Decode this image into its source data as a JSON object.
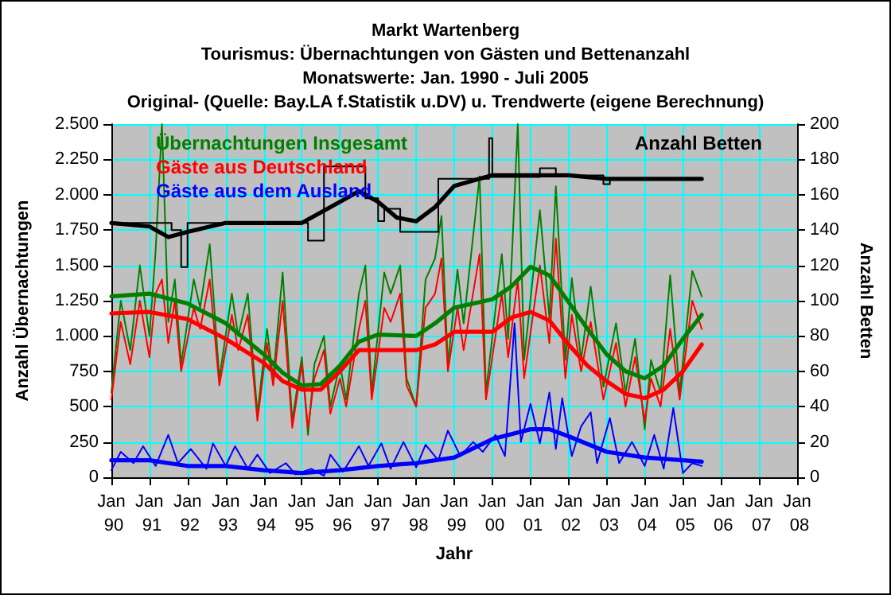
{
  "chart_data": {
    "type": "line",
    "title": "Markt Wartenberg",
    "subtitle": "Tourismus: Übernachtungen von Gästen und Bettenanzahl\nMonatswerte: Jan. 1990 - Juli 2005\nOriginal- (Quelle: Bay.LA f.Statistik u.DV) u. Trendwerte (eigene Berechnung)",
    "xlabel": "Jahr",
    "ylabel": "Anzahl Übernachtungen",
    "y2label": "Anzahl Betten",
    "xlim": [
      "1990-01",
      "2008-01"
    ],
    "xticks": [
      {
        "value": "1990-01",
        "label": "Jan 90"
      },
      {
        "value": "1991-01",
        "label": "Jan 91"
      },
      {
        "value": "1992-01",
        "label": "Jan 92"
      },
      {
        "value": "1993-01",
        "label": "Jan 93"
      },
      {
        "value": "1994-01",
        "label": "Jan 94"
      },
      {
        "value": "1995-01",
        "label": "Jan 95"
      },
      {
        "value": "1996-01",
        "label": "Jan 96"
      },
      {
        "value": "1997-01",
        "label": "Jan 97"
      },
      {
        "value": "1998-01",
        "label": "Jan 98"
      },
      {
        "value": "1999-01",
        "label": "Jan 99"
      },
      {
        "value": "2000-01",
        "label": "Jan 00"
      },
      {
        "value": "2001-01",
        "label": "Jan 01"
      },
      {
        "value": "2002-01",
        "label": "Jan 02"
      },
      {
        "value": "2003-01",
        "label": "Jan 03"
      },
      {
        "value": "2004-01",
        "label": "Jan 04"
      },
      {
        "value": "2005-01",
        "label": "Jan 05"
      },
      {
        "value": "2006-01",
        "label": "Jan 06"
      },
      {
        "value": "2007-01",
        "label": "Jan 07"
      },
      {
        "value": "2008-01",
        "label": "Jan 08"
      }
    ],
    "ylim": [
      0,
      2500
    ],
    "yticks": [
      0,
      250,
      500,
      750,
      {
        "value": 1000,
        "label": "1.000"
      },
      {
        "value": 1250,
        "label": "1.250"
      },
      {
        "value": 1500,
        "label": "1.500"
      },
      {
        "value": 1750,
        "label": "1.750"
      },
      {
        "value": 2000,
        "label": "2.000"
      },
      {
        "value": 2250,
        "label": "2.250"
      },
      {
        "value": 2500,
        "label": "2.500"
      }
    ],
    "y2lim": [
      0,
      200
    ],
    "y2ticks": [
      0,
      20,
      40,
      60,
      80,
      100,
      120,
      140,
      160,
      180,
      200
    ],
    "grid": true,
    "legend": "top left",
    "marker": "none",
    "line_style": "solid",
    "series": [
      {
        "name": "Übernachtungen Insgesamt",
        "color": "#008000",
        "x": [
          "1990-01",
          "1990-04",
          "1990-07",
          "1990-10",
          "1991-01",
          "1991-03",
          "1991-05",
          "1991-07",
          "1991-09",
          "1991-11",
          "1992-03",
          "1992-05",
          "1992-08",
          "1992-11",
          "1993-03",
          "1993-05",
          "1993-08",
          "1993-11",
          "1994-02",
          "1994-04",
          "1994-07",
          "1994-10",
          "1995-01",
          "1995-03",
          "1995-05",
          "1995-08",
          "1995-10",
          "1996-01",
          "1996-03",
          "1996-07",
          "1996-09",
          "1996-11",
          "1997-03",
          "1997-05",
          "1997-08",
          "1997-10",
          "1998-01",
          "1998-04",
          "1998-07",
          "1998-09",
          "1998-11",
          "1999-02",
          "1999-04",
          "1999-09",
          "1999-11",
          "2000-04",
          "2000-06",
          "2000-09",
          "2000-11",
          "2001-04",
          "2001-07",
          "2001-09",
          "2001-12",
          "2002-02",
          "2002-05",
          "2002-08",
          "2002-12",
          "2003-04",
          "2003-07",
          "2003-10",
          "2004-01",
          "2004-03",
          "2004-06",
          "2004-09",
          "2004-12",
          "2005-04",
          "2005-07"
        ],
        "values": [
          600,
          1250,
          900,
          1500,
          1000,
          1600,
          2500,
          1100,
          1400,
          800,
          1400,
          1200,
          1650,
          700,
          1300,
          1000,
          1300,
          450,
          1050,
          700,
          1450,
          400,
          850,
          300,
          800,
          1000,
          500,
          800,
          550,
          1300,
          1500,
          600,
          1450,
          1300,
          1500,
          700,
          500,
          1400,
          1550,
          1850,
          800,
          1470,
          1090,
          2130,
          600,
          1580,
          980,
          2500,
          830,
          1890,
          1130,
          2060,
          830,
          1410,
          830,
          1350,
          640,
          1090,
          600,
          980,
          340,
          830,
          600,
          1430,
          600,
          1460,
          1280
        ]
      },
      {
        "name": "Gäste aus Deutschland",
        "color": "#ff0000",
        "x": [
          "1990-01",
          "1990-04",
          "1990-07",
          "1990-10",
          "1991-01",
          "1991-03",
          "1991-05",
          "1991-07",
          "1991-09",
          "1991-11",
          "1992-03",
          "1992-05",
          "1992-08",
          "1992-11",
          "1993-03",
          "1993-05",
          "1993-08",
          "1993-11",
          "1994-02",
          "1994-04",
          "1994-07",
          "1994-10",
          "1995-01",
          "1995-03",
          "1995-05",
          "1995-08",
          "1995-10",
          "1996-01",
          "1996-03",
          "1996-07",
          "1996-09",
          "1996-11",
          "1997-03",
          "1997-05",
          "1997-08",
          "1997-10",
          "1998-01",
          "1998-04",
          "1998-07",
          "1998-09",
          "1998-11",
          "1999-02",
          "1999-04",
          "1999-09",
          "1999-11",
          "2000-04",
          "2000-06",
          "2000-09",
          "2000-11",
          "2001-04",
          "2001-07",
          "2001-09",
          "2001-12",
          "2002-02",
          "2002-05",
          "2002-08",
          "2002-12",
          "2003-04",
          "2003-07",
          "2003-10",
          "2004-01",
          "2004-03",
          "2004-06",
          "2004-09",
          "2004-12",
          "2005-04",
          "2005-07"
        ],
        "values": [
          550,
          1100,
          800,
          1250,
          850,
          1300,
          1400,
          950,
          1250,
          750,
          1200,
          1050,
          1400,
          650,
          1150,
          900,
          1150,
          400,
          950,
          650,
          1250,
          350,
          800,
          350,
          700,
          900,
          450,
          700,
          500,
          1050,
          1250,
          550,
          1200,
          1100,
          1300,
          650,
          500,
          1200,
          1300,
          1550,
          750,
          1200,
          900,
          1580,
          550,
          1300,
          850,
          1400,
          700,
          1500,
          950,
          1690,
          700,
          1150,
          750,
          1100,
          550,
          950,
          500,
          850,
          400,
          700,
          500,
          1050,
          550,
          1250,
          1050
        ]
      },
      {
        "name": "Gäste aus dem Ausland",
        "color": "#0000ff",
        "x": [
          "1990-01",
          "1990-04",
          "1990-08",
          "1990-11",
          "1991-03",
          "1991-07",
          "1991-10",
          "1992-02",
          "1992-07",
          "1992-09",
          "1993-01",
          "1993-04",
          "1993-08",
          "1993-11",
          "1994-03",
          "1994-08",
          "1994-11",
          "1995-04",
          "1995-08",
          "1995-10",
          "1996-02",
          "1996-07",
          "1996-10",
          "1997-02",
          "1997-05",
          "1997-09",
          "1998-01",
          "1998-04",
          "1998-08",
          "1998-11",
          "1999-03",
          "1999-07",
          "1999-10",
          "2000-02",
          "2000-05",
          "2000-08",
          "2000-10",
          "2001-01",
          "2001-04",
          "2001-07",
          "2001-09",
          "2001-11",
          "2002-02",
          "2002-05",
          "2002-08",
          "2002-10",
          "2003-02",
          "2003-05",
          "2003-09",
          "2004-01",
          "2004-04",
          "2004-07",
          "2004-10",
          "2005-01",
          "2005-04",
          "2005-07"
        ],
        "values": [
          50,
          180,
          100,
          220,
          80,
          300,
          100,
          200,
          60,
          240,
          80,
          220,
          60,
          160,
          30,
          100,
          20,
          60,
          10,
          160,
          40,
          220,
          80,
          240,
          60,
          250,
          70,
          230,
          120,
          330,
          150,
          250,
          180,
          300,
          150,
          1090,
          250,
          520,
          240,
          600,
          200,
          560,
          150,
          360,
          460,
          100,
          420,
          100,
          250,
          80,
          300,
          60,
          490,
          30,
          100,
          80
        ]
      },
      {
        "name": "Anzahl Betten",
        "type": "step",
        "axis": "y2",
        "color": "#000000",
        "x": [
          "1990-01",
          "1991-08",
          "1991-11",
          "1992-01",
          "1995-03",
          "1995-08",
          "1996-09",
          "1997-01",
          "1997-03",
          "1997-08",
          "1998-08",
          "1999-12",
          "2000-01",
          "2001-04",
          "2001-09",
          "2002-12",
          "2003-02",
          "2005-07"
        ],
        "values": [
          144,
          140,
          119,
          144,
          134,
          176,
          158,
          145,
          152,
          139,
          169,
          192,
          170,
          175,
          171,
          166,
          169,
          169
        ]
      },
      {
        "color": "#008000",
        "x": [
          "1990-01",
          "1991-01",
          "1992-01",
          "1993-01",
          "1994-01",
          "1994-07",
          "1995-01",
          "1995-07",
          "1996-01",
          "1996-07",
          "1997-01",
          "1998-01",
          "1998-07",
          "1999-01",
          "2000-01",
          "2000-07",
          "2001-01",
          "2001-07",
          "2002-01",
          "2002-07",
          "2003-01",
          "2003-07",
          "2004-01",
          "2004-07",
          "2005-01",
          "2005-07"
        ],
        "values": [
          1280,
          1300,
          1230,
          1090,
          870,
          740,
          650,
          660,
          790,
          960,
          1010,
          1000,
          1090,
          1200,
          1260,
          1350,
          1490,
          1430,
          1240,
          1050,
          870,
          750,
          700,
          790,
          980,
          1150
        ]
      },
      {
        "color": "#ff0000",
        "x": [
          "1990-01",
          "1991-01",
          "1992-01",
          "1993-01",
          "1994-01",
          "1994-07",
          "1995-01",
          "1995-07",
          "1996-01",
          "1996-07",
          "1997-01",
          "1998-01",
          "1998-07",
          "1999-01",
          "2000-01",
          "2000-07",
          "2001-01",
          "2001-07",
          "2002-01",
          "2002-07",
          "2003-01",
          "2003-07",
          "2004-01",
          "2004-07",
          "2005-01",
          "2005-07"
        ],
        "values": [
          1160,
          1170,
          1120,
          980,
          810,
          680,
          620,
          620,
          750,
          900,
          900,
          900,
          940,
          1030,
          1030,
          1130,
          1170,
          1110,
          940,
          790,
          680,
          590,
          560,
          620,
          750,
          940
        ]
      },
      {
        "color": "#0000ff",
        "x": [
          "1990-01",
          "1991-01",
          "1992-01",
          "1993-01",
          "1994-01",
          "1995-01",
          "1996-01",
          "1997-01",
          "1998-01",
          "1999-01",
          "2000-01",
          "2001-01",
          "2001-07",
          "2002-01",
          "2003-01",
          "2004-01",
          "2005-01",
          "2005-07"
        ],
        "values": [
          120,
          120,
          80,
          80,
          50,
          30,
          50,
          80,
          100,
          140,
          270,
          340,
          340,
          290,
          180,
          140,
          120,
          110
        ]
      },
      {
        "color": "#000000",
        "axis": "y2",
        "x": [
          "1990-01",
          "1991-01",
          "1991-07",
          "1992-01",
          "1993-01",
          "1994-01",
          "1995-01",
          "1996-01",
          "1996-07",
          "1997-01",
          "1997-07",
          "1998-01",
          "1998-07",
          "1999-01",
          "1999-07",
          "2000-01",
          "2001-01",
          "2002-01",
          "2003-01",
          "2004-01",
          "2005-01",
          "2005-07"
        ],
        "values": [
          144,
          142,
          136,
          139,
          144,
          144,
          144,
          156,
          162,
          156,
          147,
          145,
          153,
          165,
          168,
          171,
          171,
          171,
          169,
          169,
          169,
          169
        ]
      }
    ]
  }
}
